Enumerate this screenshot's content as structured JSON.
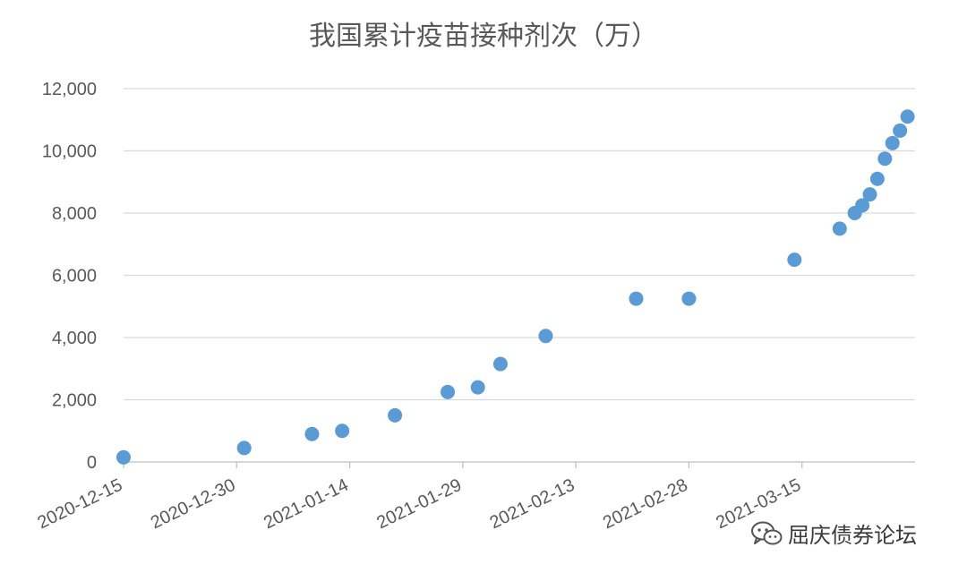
{
  "colors": {
    "marker": "#5b9bd5",
    "text": "#595959",
    "grid": "#d9d9d9",
    "axis": "#bfbfbf"
  },
  "watermark": {
    "icon": "wechat-icon",
    "text": "屈庆债券论坛"
  },
  "chart_data": {
    "type": "scatter",
    "title": "我国累计疫苗接种剂次（万）",
    "xlabel": "",
    "ylabel": "",
    "x_axis_type": "date",
    "xlim": [
      "2020-12-15",
      "2021-03-30"
    ],
    "ylim": [
      0,
      12000
    ],
    "yticks": [
      0,
      2000,
      4000,
      6000,
      8000,
      10000,
      12000
    ],
    "ytick_labels": [
      "0",
      "2,000",
      "4,000",
      "6,000",
      "8,000",
      "10,000",
      "12,000"
    ],
    "xticks": [
      "2020-12-15",
      "2020-12-30",
      "2021-01-14",
      "2021-01-29",
      "2021-02-13",
      "2021-02-28",
      "2021-03-15"
    ],
    "grid": true,
    "legend": "none",
    "points": [
      {
        "x": "2020-12-15",
        "y": 150
      },
      {
        "x": "2020-12-31",
        "y": 450
      },
      {
        "x": "2021-01-09",
        "y": 900
      },
      {
        "x": "2021-01-13",
        "y": 1000
      },
      {
        "x": "2021-01-20",
        "y": 1500
      },
      {
        "x": "2021-01-27",
        "y": 2250
      },
      {
        "x": "2021-01-31",
        "y": 2400
      },
      {
        "x": "2021-02-03",
        "y": 3150
      },
      {
        "x": "2021-02-09",
        "y": 4050
      },
      {
        "x": "2021-02-21",
        "y": 5250
      },
      {
        "x": "2021-02-28",
        "y": 5250
      },
      {
        "x": "2021-03-14",
        "y": 6500
      },
      {
        "x": "2021-03-20",
        "y": 7500
      },
      {
        "x": "2021-03-22",
        "y": 8000
      },
      {
        "x": "2021-03-23",
        "y": 8250
      },
      {
        "x": "2021-03-24",
        "y": 8600
      },
      {
        "x": "2021-03-25",
        "y": 9100
      },
      {
        "x": "2021-03-26",
        "y": 9750
      },
      {
        "x": "2021-03-27",
        "y": 10250
      },
      {
        "x": "2021-03-28",
        "y": 10650
      },
      {
        "x": "2021-03-29",
        "y": 11100
      }
    ]
  }
}
